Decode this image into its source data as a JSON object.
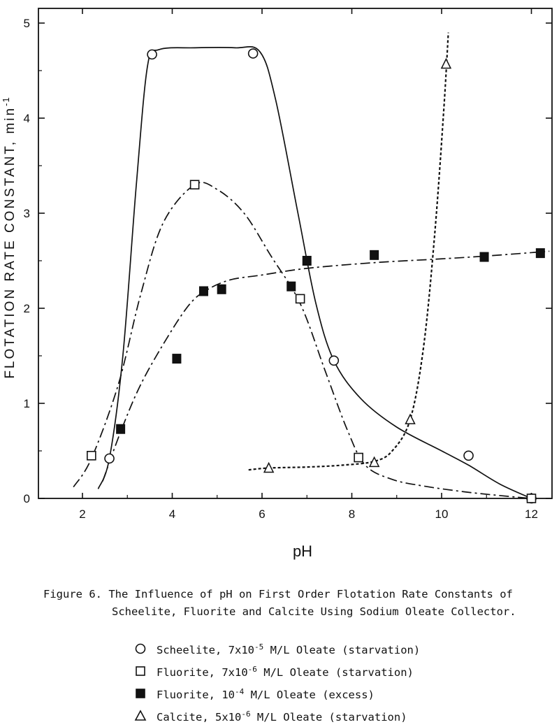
{
  "chart_data": {
    "type": "scatter",
    "xlabel": "pH",
    "ylabel": "FLOTATION RATE CONSTANT, min",
    "ylabel_sup": "-1",
    "xlim": [
      1.5,
      12.4
    ],
    "ylim": [
      0,
      5
    ],
    "x_ticks": [
      2,
      4,
      6,
      8,
      10,
      12
    ],
    "y_ticks": [
      0,
      1,
      2,
      3,
      4,
      5
    ],
    "grid": false,
    "legend_placement": "bottom",
    "series": [
      {
        "name": "Scheelite",
        "marker": "open-circle",
        "line": "solid",
        "points": [
          [
            2.6,
            0.42
          ],
          [
            3.55,
            4.67
          ],
          [
            5.8,
            4.68
          ],
          [
            7.6,
            1.45
          ],
          [
            10.6,
            0.45
          ],
          [
            12.0,
            0.0
          ]
        ],
        "curve": [
          [
            2.35,
            0.1
          ],
          [
            2.6,
            0.42
          ],
          [
            2.9,
            1.5
          ],
          [
            3.2,
            3.3
          ],
          [
            3.45,
            4.55
          ],
          [
            3.7,
            4.72
          ],
          [
            4.5,
            4.74
          ],
          [
            5.4,
            4.74
          ],
          [
            5.95,
            4.7
          ],
          [
            6.3,
            4.2
          ],
          [
            6.8,
            3.0
          ],
          [
            7.2,
            2.05
          ],
          [
            7.6,
            1.45
          ],
          [
            8.2,
            1.05
          ],
          [
            9.0,
            0.75
          ],
          [
            10.0,
            0.5
          ],
          [
            10.6,
            0.35
          ],
          [
            11.3,
            0.15
          ],
          [
            12.0,
            0.0
          ]
        ]
      },
      {
        "name": "Fluorite",
        "marker": "open-square",
        "line": "dash-dot",
        "points": [
          [
            2.2,
            0.45
          ],
          [
            4.5,
            3.3
          ],
          [
            6.85,
            2.1
          ],
          [
            8.15,
            0.43
          ],
          [
            12.0,
            0.0
          ]
        ],
        "curve": [
          [
            1.8,
            0.12
          ],
          [
            2.2,
            0.42
          ],
          [
            2.8,
            1.2
          ],
          [
            3.3,
            2.15
          ],
          [
            3.8,
            2.9
          ],
          [
            4.5,
            3.3
          ],
          [
            5.0,
            3.25
          ],
          [
            5.6,
            3.0
          ],
          [
            6.2,
            2.55
          ],
          [
            6.85,
            2.05
          ],
          [
            7.4,
            1.35
          ],
          [
            7.9,
            0.72
          ],
          [
            8.3,
            0.35
          ],
          [
            8.9,
            0.2
          ],
          [
            9.6,
            0.13
          ],
          [
            10.5,
            0.07
          ],
          [
            11.3,
            0.03
          ],
          [
            12.0,
            0.0
          ]
        ]
      },
      {
        "name": "Fluorite (excess)",
        "marker": "filled-square",
        "line": "dash-dot",
        "points": [
          [
            2.85,
            0.73
          ],
          [
            4.1,
            1.47
          ],
          [
            4.7,
            2.18
          ],
          [
            5.1,
            2.2
          ],
          [
            6.65,
            2.23
          ],
          [
            7.0,
            2.5
          ],
          [
            8.5,
            2.56
          ],
          [
            10.95,
            2.54
          ],
          [
            12.2,
            2.58
          ]
        ],
        "curve": [
          [
            2.45,
            0.18
          ],
          [
            2.85,
            0.7
          ],
          [
            3.3,
            1.2
          ],
          [
            3.9,
            1.7
          ],
          [
            4.4,
            2.05
          ],
          [
            4.8,
            2.2
          ],
          [
            5.3,
            2.3
          ],
          [
            6.0,
            2.35
          ],
          [
            7.0,
            2.42
          ],
          [
            8.5,
            2.48
          ],
          [
            10.0,
            2.52
          ],
          [
            11.0,
            2.55
          ],
          [
            12.4,
            2.6
          ]
        ]
      },
      {
        "name": "Calcite",
        "marker": "open-triangle",
        "line": "dashed",
        "points": [
          [
            6.15,
            0.32
          ],
          [
            8.5,
            0.38
          ],
          [
            9.3,
            0.83
          ],
          [
            10.1,
            4.57
          ]
        ],
        "curve": [
          [
            5.7,
            0.3
          ],
          [
            6.15,
            0.32
          ],
          [
            7.0,
            0.33
          ],
          [
            7.8,
            0.35
          ],
          [
            8.5,
            0.39
          ],
          [
            8.9,
            0.5
          ],
          [
            9.3,
            0.83
          ],
          [
            9.6,
            1.6
          ],
          [
            9.85,
            2.8
          ],
          [
            10.05,
            4.1
          ],
          [
            10.15,
            4.9
          ]
        ]
      }
    ]
  },
  "caption": {
    "line1": "Figure 6.  The Influence of pH on First Order Flotation Rate Constants of",
    "line2": "Scheelite, Fluorite and Calcite Using Sodium Oleate Collector."
  },
  "legend": [
    {
      "symbol": "open-circle",
      "text_pre": "Scheelite, 7x10",
      "sup": "-5",
      "text_post": " M/L Oleate (starvation)"
    },
    {
      "symbol": "open-square",
      "text_pre": "Fluorite, 7x10",
      "sup": "-6",
      "text_post": " M/L Oleate (starvation)"
    },
    {
      "symbol": "filled-square",
      "text_pre": "Fluorite, 10",
      "sup": "-4",
      "text_post": " M/L Oleate (excess)"
    },
    {
      "symbol": "open-triangle",
      "text_pre": "Calcite, 5x10",
      "sup": "-6",
      "text_post": " M/L Oleate (starvation)"
    }
  ]
}
